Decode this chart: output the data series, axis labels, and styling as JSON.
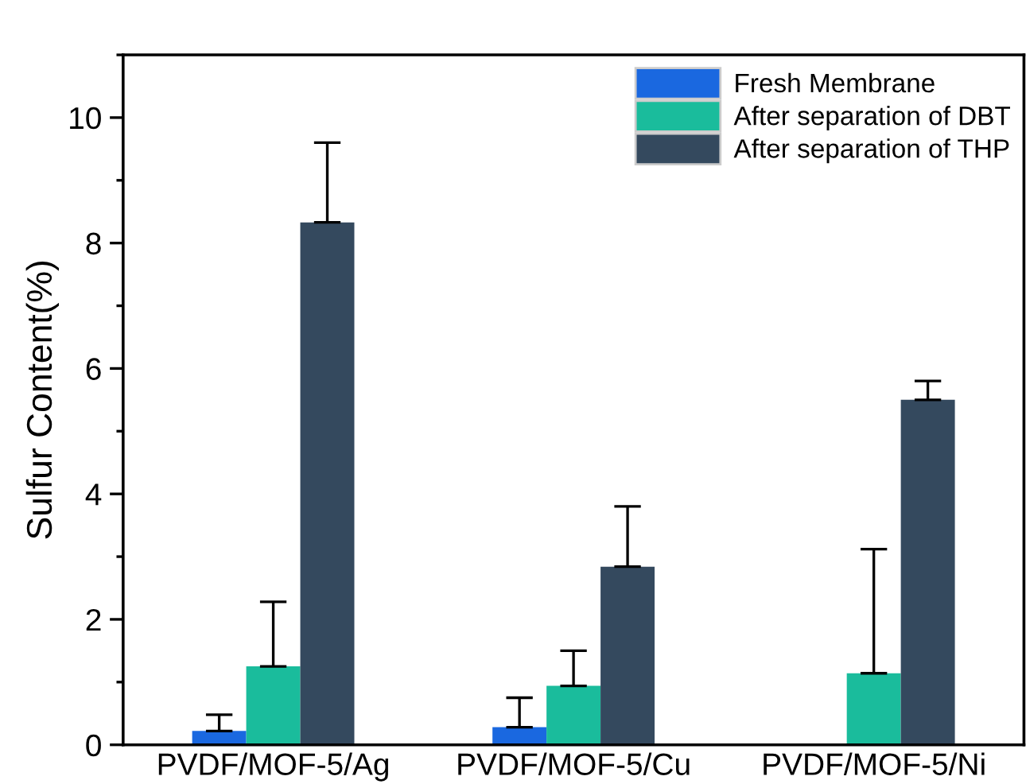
{
  "chart_data": {
    "type": "bar",
    "ylabel": "Sulfur Content(%)",
    "categories": [
      "PVDF/MOF-5/Ag",
      "PVDF/MOF-5/Cu",
      "PVDF/MOF-5/Ni"
    ],
    "series": [
      {
        "name": "Fresh Membrane",
        "color": "#1a68e0",
        "values": [
          0.22,
          0.28,
          null
        ],
        "errors": [
          [
            0.22,
            0.48
          ],
          [
            0.28,
            0.75
          ],
          null
        ]
      },
      {
        "name": "After separation of DBT",
        "color": "#1abc9c",
        "values": [
          1.25,
          0.94,
          1.14
        ],
        "errors": [
          [
            1.25,
            2.28
          ],
          [
            0.94,
            1.5
          ],
          [
            1.14,
            3.12
          ]
        ]
      },
      {
        "name": "After separation of THP",
        "color": "#34495e",
        "values": [
          8.33,
          2.84,
          5.5
        ],
        "errors": [
          [
            8.33,
            9.6
          ],
          [
            2.84,
            3.8
          ],
          [
            5.5,
            5.8
          ]
        ]
      }
    ],
    "ylim": [
      0,
      11
    ],
    "yticks": [
      0,
      2,
      4,
      6,
      8,
      10
    ],
    "grid": false,
    "legend": "top right"
  }
}
